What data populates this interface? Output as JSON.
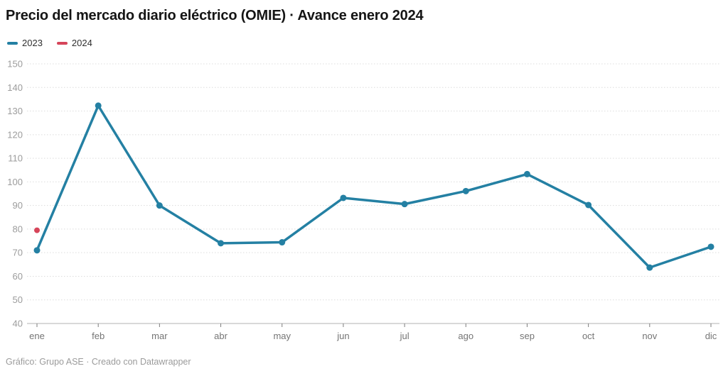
{
  "title": "Precio del mercado diario eléctrico (OMIE) · Avance enero 2024",
  "legend": {
    "items": [
      {
        "label": "2023",
        "color": "#2480a3"
      },
      {
        "label": "2024",
        "color": "#d6455a"
      }
    ]
  },
  "footer": {
    "credit": "Gráfico: Grupo ASE · Creado con Datawrapper"
  },
  "chart_data": {
    "type": "line",
    "categories": [
      "ene",
      "feb",
      "mar",
      "abr",
      "may",
      "jun",
      "jul",
      "ago",
      "sep",
      "oct",
      "nov",
      "dic"
    ],
    "series": [
      {
        "name": "2023",
        "color": "#2480a3",
        "values": [
          71,
          132.3,
          90,
          74,
          74.4,
          93.2,
          90.6,
          96.1,
          103.3,
          90.2,
          63.7,
          72.5
        ]
      },
      {
        "name": "2024",
        "color": "#d6455a",
        "values": [
          79.5,
          null,
          null,
          null,
          null,
          null,
          null,
          null,
          null,
          null,
          null,
          null
        ]
      }
    ],
    "title": "Precio del mercado diario eléctrico (OMIE) · Avance enero 2024",
    "xlabel": "",
    "ylabel": "",
    "ylim": [
      40,
      150
    ],
    "ytick_step": 10,
    "grid": "horizontal-dotted",
    "legend_position": "top-left"
  }
}
